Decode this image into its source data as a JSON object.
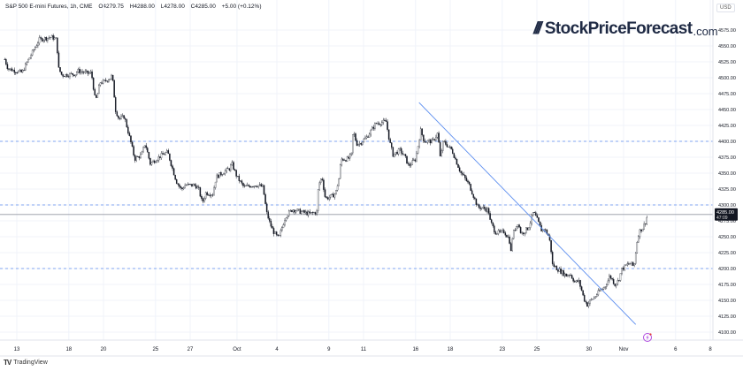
{
  "header": {
    "symbol": "S&P 500 E-mini Futures, 1h, CME",
    "open": "O4279.75",
    "high": "H4288.00",
    "low": "L4278.00",
    "close": "C4285.00",
    "change": "+5.00 (+0.12%)"
  },
  "logo": {
    "slashes": "///",
    "name": "StockPriceForecast",
    "tld": ".com"
  },
  "currency": "USD",
  "price_tag": {
    "price": "4285.00",
    "countdown": "47:09"
  },
  "footer": {
    "brand": "TradingView"
  },
  "colors": {
    "candle": "#131722",
    "trendline": "#5b8def",
    "level": "#5b8def",
    "price_line": "#9598a1",
    "grid": "#f0f3fa",
    "alert": "#b04be0"
  },
  "chart_data": {
    "type": "candlestick",
    "title": "S&P 500 E-mini Futures, 1h, CME",
    "x_unit": "trading days since Sep 13",
    "xlim": [
      -0.9,
      40.2
    ],
    "ylim": [
      4090,
      4590
    ],
    "y_ticks": [
      "4575.00",
      "4550.00",
      "4525.00",
      "4500.00",
      "4475.00",
      "4450.00",
      "4425.00",
      "4400.00",
      "4375.00",
      "4350.00",
      "4325.00",
      "4300.00",
      "4275.00",
      "4250.00",
      "4225.00",
      "4200.00",
      "4175.00",
      "4150.00",
      "4125.00",
      "4100.00"
    ],
    "x_ticks": [
      {
        "label": "13",
        "x": 0
      },
      {
        "label": "18",
        "x": 3
      },
      {
        "label": "20",
        "x": 5
      },
      {
        "label": "25",
        "x": 8
      },
      {
        "label": "27",
        "x": 10
      },
      {
        "label": "Oct",
        "x": 12.7
      },
      {
        "label": "4",
        "x": 15
      },
      {
        "label": "9",
        "x": 18
      },
      {
        "label": "11",
        "x": 20
      },
      {
        "label": "16",
        "x": 23
      },
      {
        "label": "18",
        "x": 25
      },
      {
        "label": "23",
        "x": 28
      },
      {
        "label": "25",
        "x": 30
      },
      {
        "label": "30",
        "x": 33
      },
      {
        "label": "Nov",
        "x": 35
      },
      {
        "label": "6",
        "x": 38
      },
      {
        "label": "8",
        "x": 40
      }
    ],
    "price_path": [
      [
        -0.7,
        4529
      ],
      [
        -0.5,
        4514
      ],
      [
        0.3,
        4508
      ],
      [
        0.6,
        4525
      ],
      [
        1.3,
        4560
      ],
      [
        2.0,
        4564
      ],
      [
        2.3,
        4560
      ],
      [
        2.4,
        4515
      ],
      [
        2.6,
        4504
      ],
      [
        3.4,
        4506
      ],
      [
        3.5,
        4511
      ],
      [
        4.1,
        4507
      ],
      [
        4.3,
        4508
      ],
      [
        4.5,
        4469
      ],
      [
        4.6,
        4467
      ],
      [
        4.8,
        4493
      ],
      [
        5.0,
        4493
      ],
      [
        5.4,
        4500
      ],
      [
        5.5,
        4504
      ],
      [
        5.7,
        4449
      ],
      [
        5.9,
        4435
      ],
      [
        6.2,
        4439
      ],
      [
        6.6,
        4396
      ],
      [
        6.8,
        4372
      ],
      [
        7.2,
        4379
      ],
      [
        7.4,
        4397
      ],
      [
        7.7,
        4365
      ],
      [
        8.4,
        4379
      ],
      [
        8.7,
        4383
      ],
      [
        9.2,
        4337
      ],
      [
        9.5,
        4324
      ],
      [
        9.7,
        4331
      ],
      [
        10.3,
        4331
      ],
      [
        10.5,
        4324
      ],
      [
        10.7,
        4303
      ],
      [
        10.9,
        4319
      ],
      [
        11.3,
        4317
      ],
      [
        11.5,
        4344
      ],
      [
        12.3,
        4358
      ],
      [
        12.4,
        4365
      ],
      [
        12.7,
        4344
      ],
      [
        13.1,
        4328
      ],
      [
        13.6,
        4331
      ],
      [
        13.9,
        4331
      ],
      [
        14.2,
        4328
      ],
      [
        14.4,
        4289
      ],
      [
        14.6,
        4271
      ],
      [
        14.8,
        4258
      ],
      [
        15.1,
        4247
      ],
      [
        15.5,
        4282
      ],
      [
        15.9,
        4293
      ],
      [
        16.4,
        4289
      ],
      [
        16.9,
        4286
      ],
      [
        17.3,
        4289
      ],
      [
        17.4,
        4331
      ],
      [
        17.6,
        4344
      ],
      [
        17.8,
        4310
      ],
      [
        18.2,
        4314
      ],
      [
        18.4,
        4319
      ],
      [
        18.6,
        4344
      ],
      [
        18.7,
        4372
      ],
      [
        19.1,
        4372
      ],
      [
        19.3,
        4379
      ],
      [
        19.4,
        4417
      ],
      [
        19.6,
        4396
      ],
      [
        19.8,
        4397
      ],
      [
        20.2,
        4407
      ],
      [
        20.7,
        4428
      ],
      [
        21.3,
        4431
      ],
      [
        21.5,
        4400
      ],
      [
        21.7,
        4379
      ],
      [
        22.1,
        4386
      ],
      [
        22.4,
        4375
      ],
      [
        22.6,
        4361
      ],
      [
        23.0,
        4372
      ],
      [
        23.3,
        4417
      ],
      [
        23.5,
        4400
      ],
      [
        24.0,
        4400
      ],
      [
        24.3,
        4414
      ],
      [
        24.4,
        4372
      ],
      [
        24.6,
        4400
      ],
      [
        25.1,
        4386
      ],
      [
        25.3,
        4372
      ],
      [
        25.6,
        4351
      ],
      [
        25.8,
        4344
      ],
      [
        26.1,
        4331
      ],
      [
        26.3,
        4317
      ],
      [
        26.6,
        4296
      ],
      [
        26.8,
        4296
      ],
      [
        27.2,
        4292
      ],
      [
        27.3,
        4275
      ],
      [
        27.6,
        4257
      ],
      [
        27.9,
        4256
      ],
      [
        28.1,
        4258
      ],
      [
        28.4,
        4247
      ],
      [
        28.5,
        4226
      ],
      [
        28.6,
        4254
      ],
      [
        28.9,
        4272
      ],
      [
        29.1,
        4254
      ],
      [
        29.5,
        4264
      ],
      [
        29.6,
        4271
      ],
      [
        29.8,
        4289
      ],
      [
        30.0,
        4278
      ],
      [
        30.3,
        4258
      ],
      [
        30.4,
        4264
      ],
      [
        30.7,
        4250
      ],
      [
        30.8,
        4233
      ],
      [
        30.9,
        4206
      ],
      [
        31.2,
        4199
      ],
      [
        31.7,
        4189
      ],
      [
        31.9,
        4192
      ],
      [
        32.2,
        4178
      ],
      [
        32.4,
        4181
      ],
      [
        32.6,
        4164
      ],
      [
        32.7,
        4153
      ],
      [
        32.9,
        4143
      ],
      [
        33.1,
        4150
      ],
      [
        33.3,
        4154
      ],
      [
        33.6,
        4164
      ],
      [
        33.9,
        4171
      ],
      [
        34.1,
        4181
      ],
      [
        34.2,
        4189
      ],
      [
        34.5,
        4175
      ],
      [
        34.7,
        4181
      ],
      [
        34.9,
        4199
      ],
      [
        35.2,
        4206
      ],
      [
        35.4,
        4208
      ],
      [
        35.6,
        4203
      ],
      [
        35.7,
        4226
      ],
      [
        35.8,
        4247
      ],
      [
        35.9,
        4258
      ],
      [
        36.1,
        4264
      ],
      [
        36.3,
        4275
      ],
      [
        36.4,
        4288
      ]
    ],
    "trendline": {
      "from": [
        23.2,
        4461
      ],
      "to": [
        35.7,
        4112
      ]
    },
    "levels": [
      4400,
      4300,
      4200
    ],
    "last_price": 4285
  }
}
